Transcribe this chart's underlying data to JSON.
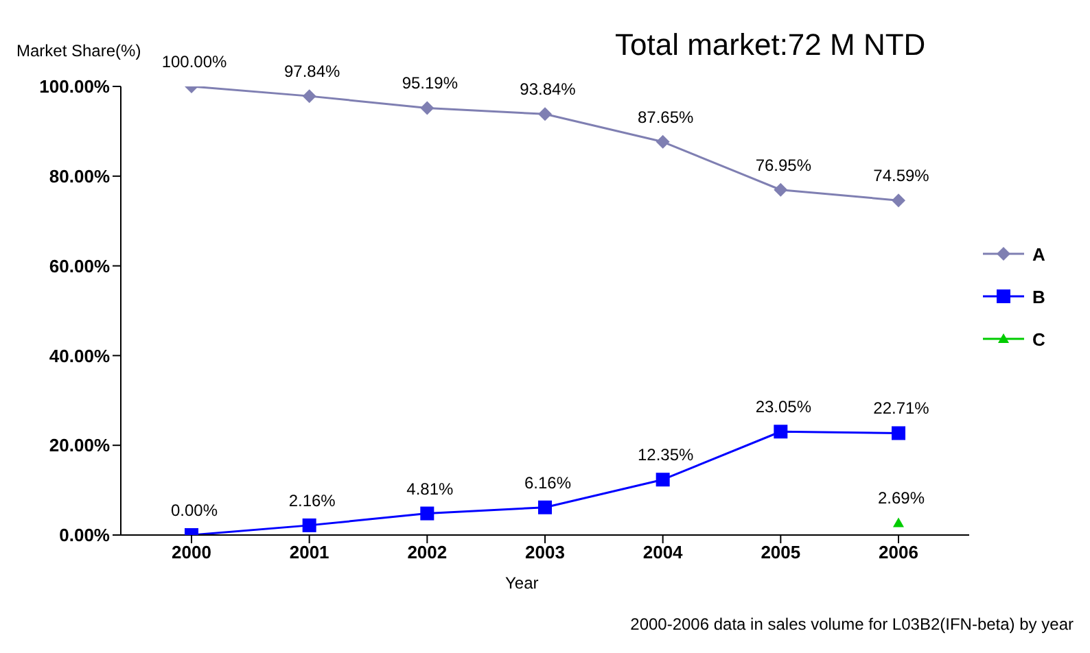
{
  "chart_data": {
    "type": "line",
    "title": "Total market:72 M NTD",
    "ylabel": "Market Share(%)",
    "xlabel": "Year",
    "categories": [
      "2000",
      "2001",
      "2002",
      "2003",
      "2004",
      "2005",
      "2006"
    ],
    "series": [
      {
        "name": "A",
        "color": "#7f7fb2",
        "marker": "diamond",
        "values": [
          100,
          97.84,
          95.19,
          93.84,
          87.65,
          76.95,
          74.59
        ],
        "value_labels": [
          "100.00%",
          "97.84%",
          "95.19%",
          "93.84%",
          "87.65%",
          "76.95%",
          "74.59%"
        ]
      },
      {
        "name": "B",
        "color": "#0000ff",
        "marker": "square",
        "values": [
          0,
          2.16,
          4.81,
          6.16,
          12.35,
          23.05,
          22.71
        ],
        "value_labels": [
          "0.00%",
          "2.16%",
          "4.81%",
          "6.16%",
          "12.35%",
          "23.05%",
          "22.71%"
        ]
      },
      {
        "name": "C",
        "color": "#00cc00",
        "marker": "triangle",
        "values": [
          null,
          null,
          null,
          null,
          null,
          null,
          2.69
        ],
        "value_labels": [
          null,
          null,
          null,
          null,
          null,
          null,
          "2.69%"
        ]
      }
    ],
    "ylim": [
      0,
      100
    ],
    "yticks": [
      {
        "value": 0,
        "label": "0.00%"
      },
      {
        "value": 20,
        "label": "20.00%"
      },
      {
        "value": 40,
        "label": "40.00%"
      },
      {
        "value": 60,
        "label": "60.00%"
      },
      {
        "value": 80,
        "label": "80.00%"
      },
      {
        "value": 100,
        "label": "100.00%"
      }
    ],
    "grid": false,
    "legend": "right",
    "annotations": [
      "2000-2006 data in sales volume for L03B2(IFN-beta) by year"
    ]
  }
}
